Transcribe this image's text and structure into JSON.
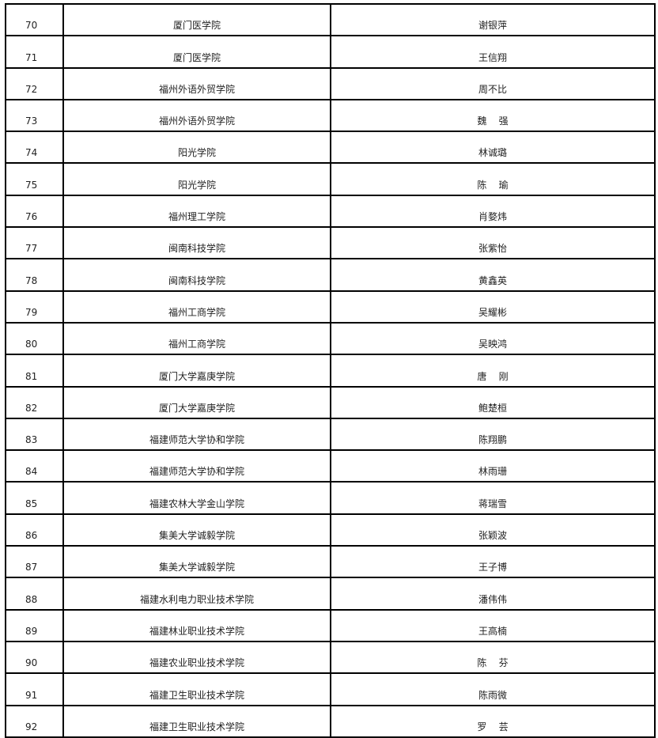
{
  "rows": [
    {
      "no": "70",
      "school": "厦门医学院",
      "name": "谢银萍"
    },
    {
      "no": "71",
      "school": "厦门医学院",
      "name": "王信翔"
    },
    {
      "no": "72",
      "school": "福州外语外贸学院",
      "name": "周不比"
    },
    {
      "no": "73",
      "school": "福州外语外贸学院",
      "name": "魏    强"
    },
    {
      "no": "74",
      "school": "阳光学院",
      "name": "林诚璐"
    },
    {
      "no": "75",
      "school": "阳光学院",
      "name": "陈    瑜"
    },
    {
      "no": "76",
      "school": "福州理工学院",
      "name": "肖婺炜"
    },
    {
      "no": "77",
      "school": "闽南科技学院",
      "name": "张紫怡"
    },
    {
      "no": "78",
      "school": "闽南科技学院",
      "name": "黄鑫英"
    },
    {
      "no": "79",
      "school": "福州工商学院",
      "name": "吴耀彬"
    },
    {
      "no": "80",
      "school": "福州工商学院",
      "name": "吴映鸿"
    },
    {
      "no": "81",
      "school": "厦门大学嘉庚学院",
      "name": "唐    刚"
    },
    {
      "no": "82",
      "school": "厦门大学嘉庚学院",
      "name": "鲍楚桓"
    },
    {
      "no": "83",
      "school": "福建师范大学协和学院",
      "name": "陈翔鹏"
    },
    {
      "no": "84",
      "school": "福建师范大学协和学院",
      "name": "林雨珊"
    },
    {
      "no": "85",
      "school": "福建农林大学金山学院",
      "name": "蒋瑞雪"
    },
    {
      "no": "86",
      "school": "集美大学诚毅学院",
      "name": "张颖波"
    },
    {
      "no": "87",
      "school": "集美大学诚毅学院",
      "name": "王子博"
    },
    {
      "no": "88",
      "school": "福建水利电力职业技术学院",
      "name": "潘伟伟"
    },
    {
      "no": "89",
      "school": "福建林业职业技术学院",
      "name": "王高楠"
    },
    {
      "no": "90",
      "school": "福建农业职业技术学院",
      "name": "陈    芬"
    },
    {
      "no": "91",
      "school": "福建卫生职业技术学院",
      "name": "陈雨微"
    },
    {
      "no": "92",
      "school": "福建卫生职业技术学院",
      "name": "罗    芸"
    }
  ]
}
